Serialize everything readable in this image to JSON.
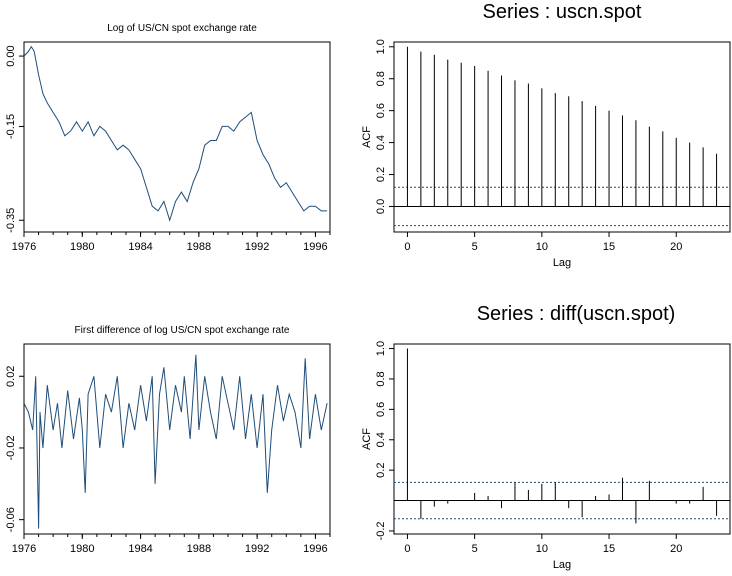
{
  "chart_data": [
    {
      "type": "line",
      "title": "Log of US/CN spot exchange rate",
      "xlabel": "",
      "ylabel": "",
      "x_ticks": [
        "1976",
        "1980",
        "1984",
        "1988",
        "1992",
        "1996"
      ],
      "y_ticks": [
        "0.00",
        "-0.15",
        "-0.35"
      ],
      "xlim": [
        1976,
        1997
      ],
      "ylim": [
        -0.375,
        0.03
      ],
      "grid": false,
      "line_color": "#1f4e79",
      "series": [
        {
          "x": [
            1976.0,
            1976.3,
            1976.5,
            1976.7,
            1977.0,
            1977.3,
            1977.6,
            1978.0,
            1978.4,
            1978.8,
            1979.2,
            1979.6,
            1980.0,
            1980.4,
            1980.8,
            1981.2,
            1981.6,
            1982.0,
            1982.4,
            1982.8,
            1983.2,
            1983.6,
            1984.0,
            1984.4,
            1984.8,
            1985.2,
            1985.6,
            1986.0,
            1986.4,
            1986.8,
            1987.2,
            1987.6,
            1988.0,
            1988.4,
            1988.8,
            1989.2,
            1989.6,
            1990.0,
            1990.4,
            1990.8,
            1991.2,
            1991.6,
            1992.0,
            1992.4,
            1992.8,
            1993.2,
            1993.6,
            1994.0,
            1994.4,
            1994.8,
            1995.2,
            1995.6,
            1996.0,
            1996.4,
            1996.8
          ],
          "y": [
            0.0,
            0.01,
            0.02,
            0.01,
            -0.04,
            -0.08,
            -0.1,
            -0.12,
            -0.14,
            -0.17,
            -0.16,
            -0.14,
            -0.16,
            -0.14,
            -0.17,
            -0.15,
            -0.16,
            -0.18,
            -0.2,
            -0.19,
            -0.2,
            -0.22,
            -0.24,
            -0.28,
            -0.32,
            -0.33,
            -0.31,
            -0.35,
            -0.31,
            -0.29,
            -0.31,
            -0.27,
            -0.24,
            -0.19,
            -0.18,
            -0.18,
            -0.15,
            -0.15,
            -0.16,
            -0.14,
            -0.13,
            -0.12,
            -0.18,
            -0.21,
            -0.23,
            -0.26,
            -0.28,
            -0.27,
            -0.29,
            -0.31,
            -0.33,
            -0.32,
            -0.32,
            -0.33,
            -0.33
          ]
        }
      ]
    },
    {
      "type": "bar",
      "title": "Series : uscn.spot",
      "xlabel": "Lag",
      "ylabel": "ACF",
      "x_ticks": [
        "0",
        "5",
        "10",
        "15",
        "20"
      ],
      "y_ticks": [
        "0.0",
        "0.2",
        "0.4",
        "0.6",
        "0.8",
        "1.0"
      ],
      "xlim": [
        -1,
        24
      ],
      "ylim": [
        -0.16,
        1.03
      ],
      "confidence_band": 0.12,
      "lags": [
        0,
        1,
        2,
        3,
        4,
        5,
        6,
        7,
        8,
        9,
        10,
        11,
        12,
        13,
        14,
        15,
        16,
        17,
        18,
        19,
        20,
        21,
        22,
        23
      ],
      "values": [
        1.0,
        0.97,
        0.95,
        0.92,
        0.9,
        0.88,
        0.85,
        0.82,
        0.79,
        0.77,
        0.74,
        0.71,
        0.69,
        0.66,
        0.63,
        0.6,
        0.57,
        0.54,
        0.5,
        0.47,
        0.43,
        0.4,
        0.37,
        0.33
      ]
    },
    {
      "type": "line",
      "title": "First difference of log US/CN spot exchange rate",
      "xlabel": "",
      "ylabel": "",
      "x_ticks": [
        "1976",
        "1980",
        "1984",
        "1988",
        "1992",
        "1996"
      ],
      "y_ticks": [
        "0.02",
        "-0.02",
        "-0.06"
      ],
      "xlim": [
        1976,
        1997
      ],
      "ylim": [
        -0.068,
        0.038
      ],
      "grid": false,
      "line_color": "#1f4e79",
      "series": [
        {
          "x": [
            1976.0,
            1976.3,
            1976.6,
            1976.8,
            1977.0,
            1977.1,
            1977.3,
            1977.6,
            1978.0,
            1978.3,
            1978.6,
            1979.0,
            1979.4,
            1979.8,
            1980.0,
            1980.2,
            1980.4,
            1980.8,
            1981.2,
            1981.6,
            1982.0,
            1982.4,
            1982.8,
            1983.2,
            1983.6,
            1984.0,
            1984.4,
            1984.8,
            1985.0,
            1985.3,
            1985.6,
            1986.0,
            1986.4,
            1986.8,
            1987.0,
            1987.4,
            1987.8,
            1988.0,
            1988.4,
            1988.8,
            1989.2,
            1989.6,
            1990.0,
            1990.4,
            1990.8,
            1991.2,
            1991.6,
            1992.0,
            1992.4,
            1992.7,
            1993.0,
            1993.4,
            1993.8,
            1994.2,
            1994.6,
            1995.0,
            1995.3,
            1995.6,
            1996.0,
            1996.4,
            1996.8
          ],
          "y": [
            0.005,
            0.0,
            -0.01,
            0.02,
            -0.065,
            0.0,
            -0.02,
            0.015,
            -0.01,
            0.005,
            -0.02,
            0.012,
            -0.015,
            0.008,
            -0.01,
            -0.045,
            0.01,
            0.02,
            -0.02,
            0.01,
            0.0,
            0.02,
            -0.02,
            0.005,
            -0.01,
            0.015,
            -0.005,
            0.02,
            -0.04,
            0.01,
            0.025,
            -0.01,
            0.015,
            0.0,
            0.02,
            -0.015,
            0.032,
            -0.01,
            0.02,
            0.0,
            -0.015,
            0.02,
            0.005,
            -0.01,
            0.02,
            -0.015,
            0.01,
            -0.02,
            0.01,
            -0.045,
            -0.01,
            0.015,
            -0.005,
            0.01,
            0.0,
            -0.02,
            0.03,
            -0.015,
            0.01,
            -0.01,
            0.005
          ]
        }
      ]
    },
    {
      "type": "bar",
      "title": "Series : diff(uscn.spot)",
      "xlabel": "Lag",
      "ylabel": "ACF",
      "x_ticks": [
        "0",
        "5",
        "10",
        "15",
        "20"
      ],
      "y_ticks": [
        "-0.2",
        "0.2",
        "0.4",
        "0.6",
        "0.8",
        "1.0"
      ],
      "xlim": [
        -1,
        24
      ],
      "ylim": [
        -0.22,
        1.03
      ],
      "confidence_band": 0.12,
      "lags": [
        0,
        1,
        2,
        3,
        4,
        5,
        6,
        7,
        8,
        9,
        10,
        11,
        12,
        13,
        14,
        15,
        16,
        17,
        18,
        19,
        20,
        21,
        22,
        23
      ],
      "values": [
        1.0,
        -0.12,
        -0.04,
        -0.02,
        0.0,
        0.05,
        0.03,
        -0.05,
        0.12,
        0.07,
        0.11,
        0.12,
        -0.05,
        -0.11,
        0.03,
        0.04,
        0.15,
        -0.15,
        0.13,
        0.0,
        -0.02,
        -0.02,
        0.09,
        -0.1
      ]
    }
  ]
}
